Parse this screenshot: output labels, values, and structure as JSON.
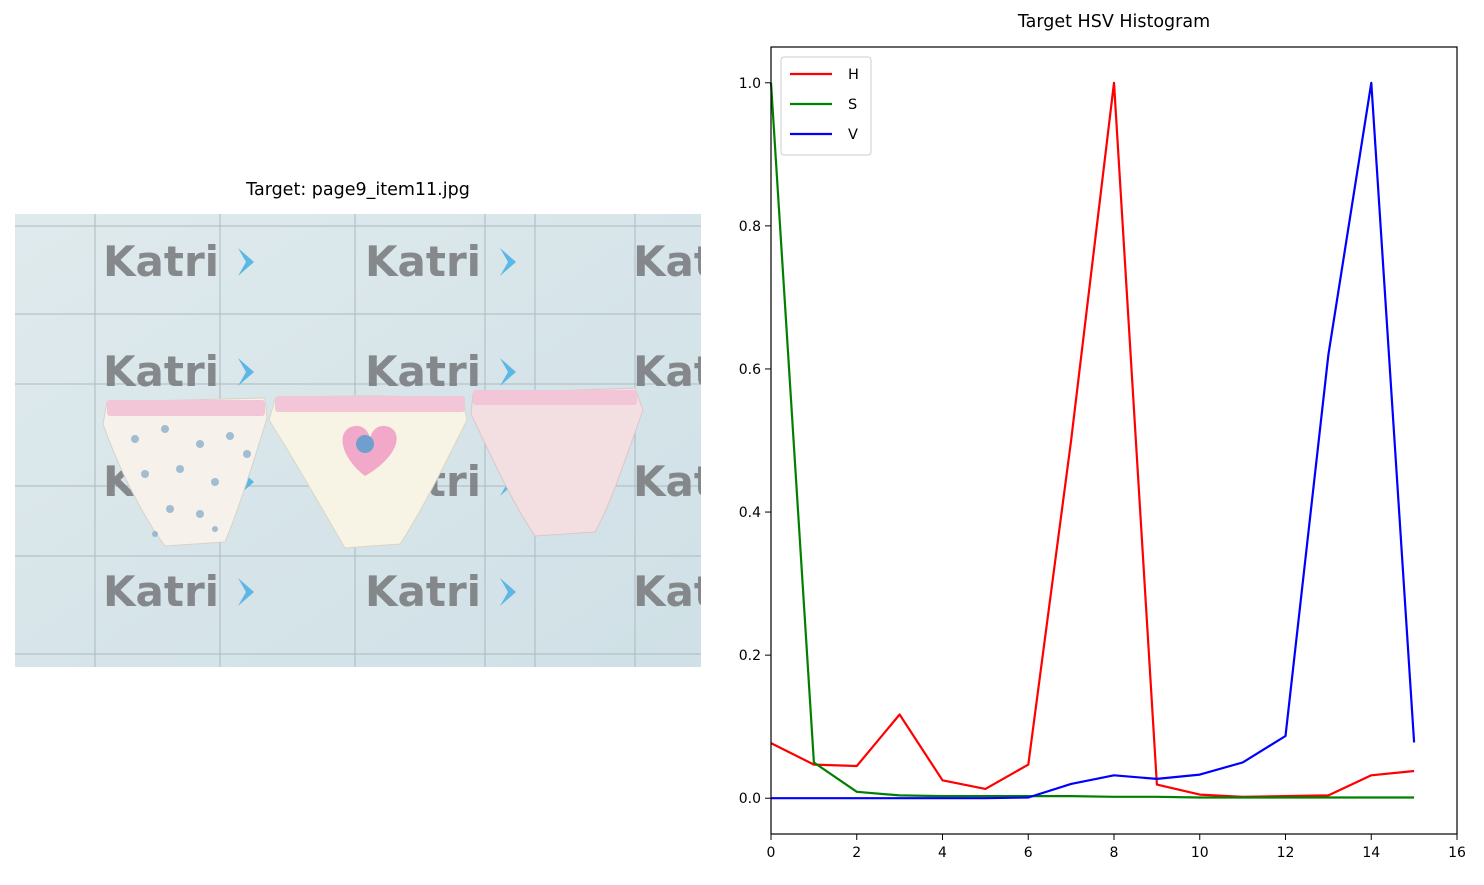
{
  "image_panel": {
    "title": "Target: page9_item11.jpg",
    "watermark_text": "Katri",
    "watermark_chevron": "chevron-right-icon"
  },
  "chart_data": {
    "type": "line",
    "title": "Target HSV Histogram",
    "xlabel": "",
    "ylabel": "",
    "xlim": [
      0,
      16
    ],
    "ylim": [
      -0.05,
      1.05
    ],
    "xticks": [
      0,
      2,
      4,
      6,
      8,
      10,
      12,
      14,
      16
    ],
    "yticks": [
      0.0,
      0.2,
      0.4,
      0.6,
      0.8,
      1.0
    ],
    "ytick_labels": [
      "0.0",
      "0.2",
      "0.4",
      "0.6",
      "0.8",
      "1.0"
    ],
    "grid": false,
    "legend_position": "top-left",
    "x": [
      0,
      1,
      2,
      3,
      4,
      5,
      6,
      7,
      8,
      9,
      10,
      11,
      12,
      13,
      14,
      15
    ],
    "series": [
      {
        "name": "H",
        "color": "#ff0000",
        "values": [
          0.077,
          0.047,
          0.045,
          0.117,
          0.025,
          0.013,
          0.047,
          0.5,
          1.0,
          0.019,
          0.005,
          0.002,
          0.003,
          0.004,
          0.032,
          0.038
        ]
      },
      {
        "name": "S",
        "color": "#008000",
        "values": [
          1.0,
          0.05,
          0.009,
          0.004,
          0.003,
          0.003,
          0.003,
          0.003,
          0.002,
          0.002,
          0.001,
          0.001,
          0.001,
          0.001,
          0.001,
          0.001
        ]
      },
      {
        "name": "V",
        "color": "#0000ff",
        "values": [
          0.0,
          0.0,
          0.0,
          0.0,
          0.0,
          0.0,
          0.001,
          0.02,
          0.032,
          0.027,
          0.033,
          0.05,
          0.087,
          0.62,
          1.0,
          0.078
        ]
      }
    ]
  }
}
